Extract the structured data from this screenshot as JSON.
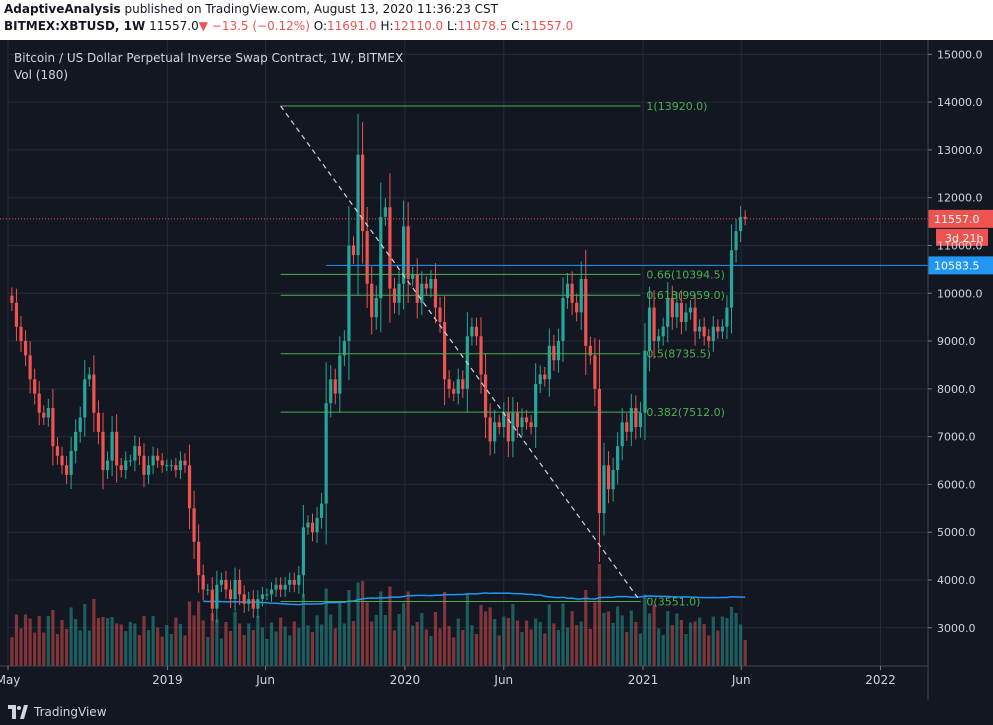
{
  "header": {
    "author": "AdaptiveAnalysis",
    "published_text": "published on TradingView.com, August 13, 2020 11:36:23 CST",
    "symbol": "BITMEX:XBTUSD, 1W",
    "last": "11557.0",
    "change": "−13.5 (−0.12%)",
    "o_label": "O:",
    "o_value": "11691.0",
    "h_label": "H:",
    "h_value": "12110.0",
    "l_label": "L:",
    "l_value": "11078.5",
    "c_label": "C:",
    "c_value": "11557.0"
  },
  "footer": {
    "brand": "TradingView"
  },
  "colors": {
    "up": "#26a69a",
    "down": "#ef5350",
    "fib": "#4caf50",
    "hline": "#2196f3",
    "vol_ma": "#2196f3",
    "bg": "#131722"
  },
  "chart_data": {
    "type": "candlestick",
    "title": "Bitcoin / US Dollar Perpetual Inverse Swap Contract, 1W, BITMEX",
    "indicator": "Vol (180)",
    "y_ticks": [
      3000,
      4000,
      5000,
      6000,
      7000,
      8000,
      9000,
      10000,
      11000,
      12000,
      13000,
      14000,
      15000
    ],
    "ylim": [
      2200,
      15300
    ],
    "x_ticks": [
      {
        "label": "May",
        "date": "2018-05-01"
      },
      {
        "label": "2019",
        "date": "2019-01-01"
      },
      {
        "label": "Jun",
        "date": "2019-06-01"
      },
      {
        "label": "2020",
        "date": "2020-01-01"
      },
      {
        "label": "Jun",
        "date": "2020-06-01"
      },
      {
        "label": "2021",
        "date": "2021-01-01"
      },
      {
        "label": "Jun",
        "date": "2021-06-01"
      },
      {
        "label": "2022",
        "date": "2022-01-01"
      }
    ],
    "xlim": [
      "2018-05-01",
      "2022-03-15"
    ],
    "candles_close": [
      9800,
      9300,
      9000,
      8700,
      8200,
      7900,
      7500,
      7400,
      7600,
      6800,
      6600,
      6400,
      6200,
      6700,
      7100,
      7400,
      8200,
      8300,
      7500,
      7100,
      6300,
      6500,
      7100,
      6400,
      6300,
      6500,
      6500,
      6800,
      6600,
      6200,
      6400,
      6600,
      6500,
      6400,
      6400,
      6400,
      6300,
      6500,
      6400,
      5500,
      4800,
      4100,
      3800,
      3800,
      3400,
      3900,
      4000,
      3800,
      3600,
      4000,
      3700,
      3500,
      3600,
      3400,
      3600,
      3700,
      3700,
      3800,
      3900,
      3800,
      3900,
      4000,
      3900,
      4100,
      5100,
      5200,
      5000,
      5300,
      5600,
      7700,
      8200,
      7900,
      8700,
      9000,
      11000,
      10800,
      12900,
      11300,
      10200,
      9500,
      9900,
      11600,
      11800,
      10100,
      9800,
      10200,
      11400,
      10300,
      10400,
      9800,
      10200,
      10100,
      10300,
      9700,
      9400,
      8200,
      8000,
      7900,
      8200,
      8000,
      9100,
      9300,
      9100,
      8300,
      7400,
      6900,
      7300,
      7200,
      7500,
      6900,
      7500,
      7200,
      7400,
      7300,
      7200,
      8100,
      8300,
      8200,
      8900,
      8600,
      9000,
      9900,
      10200,
      9800,
      9600,
      10300,
      8900,
      8700,
      8000,
      5400,
      6400,
      5900,
      6300,
      6800,
      7300,
      7100,
      7600,
      7200,
      7500,
      8800,
      9700,
      9000,
      9100,
      9300,
      9900,
      9500,
      9800,
      9400,
      9600,
      9700,
      9200,
      9300,
      9100,
      9000,
      9300,
      9200,
      9300,
      9700,
      10900,
      11300,
      11600,
      11557
    ],
    "candles_date_start": "2018-05-07",
    "candles_interval_days": 7,
    "volume_ma_label": "Vol (180)",
    "price_lines": [
      {
        "label": "11557.0",
        "value": 11557.0,
        "style": "dotted-red",
        "badge": "11557.0",
        "badge_sub": "3d 21h"
      },
      {
        "label": "10583.5",
        "value": 10583.5,
        "style": "solid-blue",
        "badge": "10583.5",
        "start_date": "2019-09-02"
      }
    ],
    "fib_levels": [
      {
        "label": "1(13920.0)",
        "value": 13920.0
      },
      {
        "label": "0.66(10394.5)",
        "value": 10394.5
      },
      {
        "label": "0.618(9959.0)",
        "value": 9959.0
      },
      {
        "label": "0.5(8735.5)",
        "value": 8735.5
      },
      {
        "label": "0.382(7512.0)",
        "value": 7512.0
      },
      {
        "label": "0(3551.0)",
        "value": 3551.0
      }
    ],
    "fib_start_date": "2019-06-24",
    "fib_end_date": "2020-12-28",
    "trendline": {
      "from": {
        "date": "2019-06-24",
        "value": 13920
      },
      "to": {
        "date": "2020-12-28",
        "value": 3551
      }
    }
  }
}
